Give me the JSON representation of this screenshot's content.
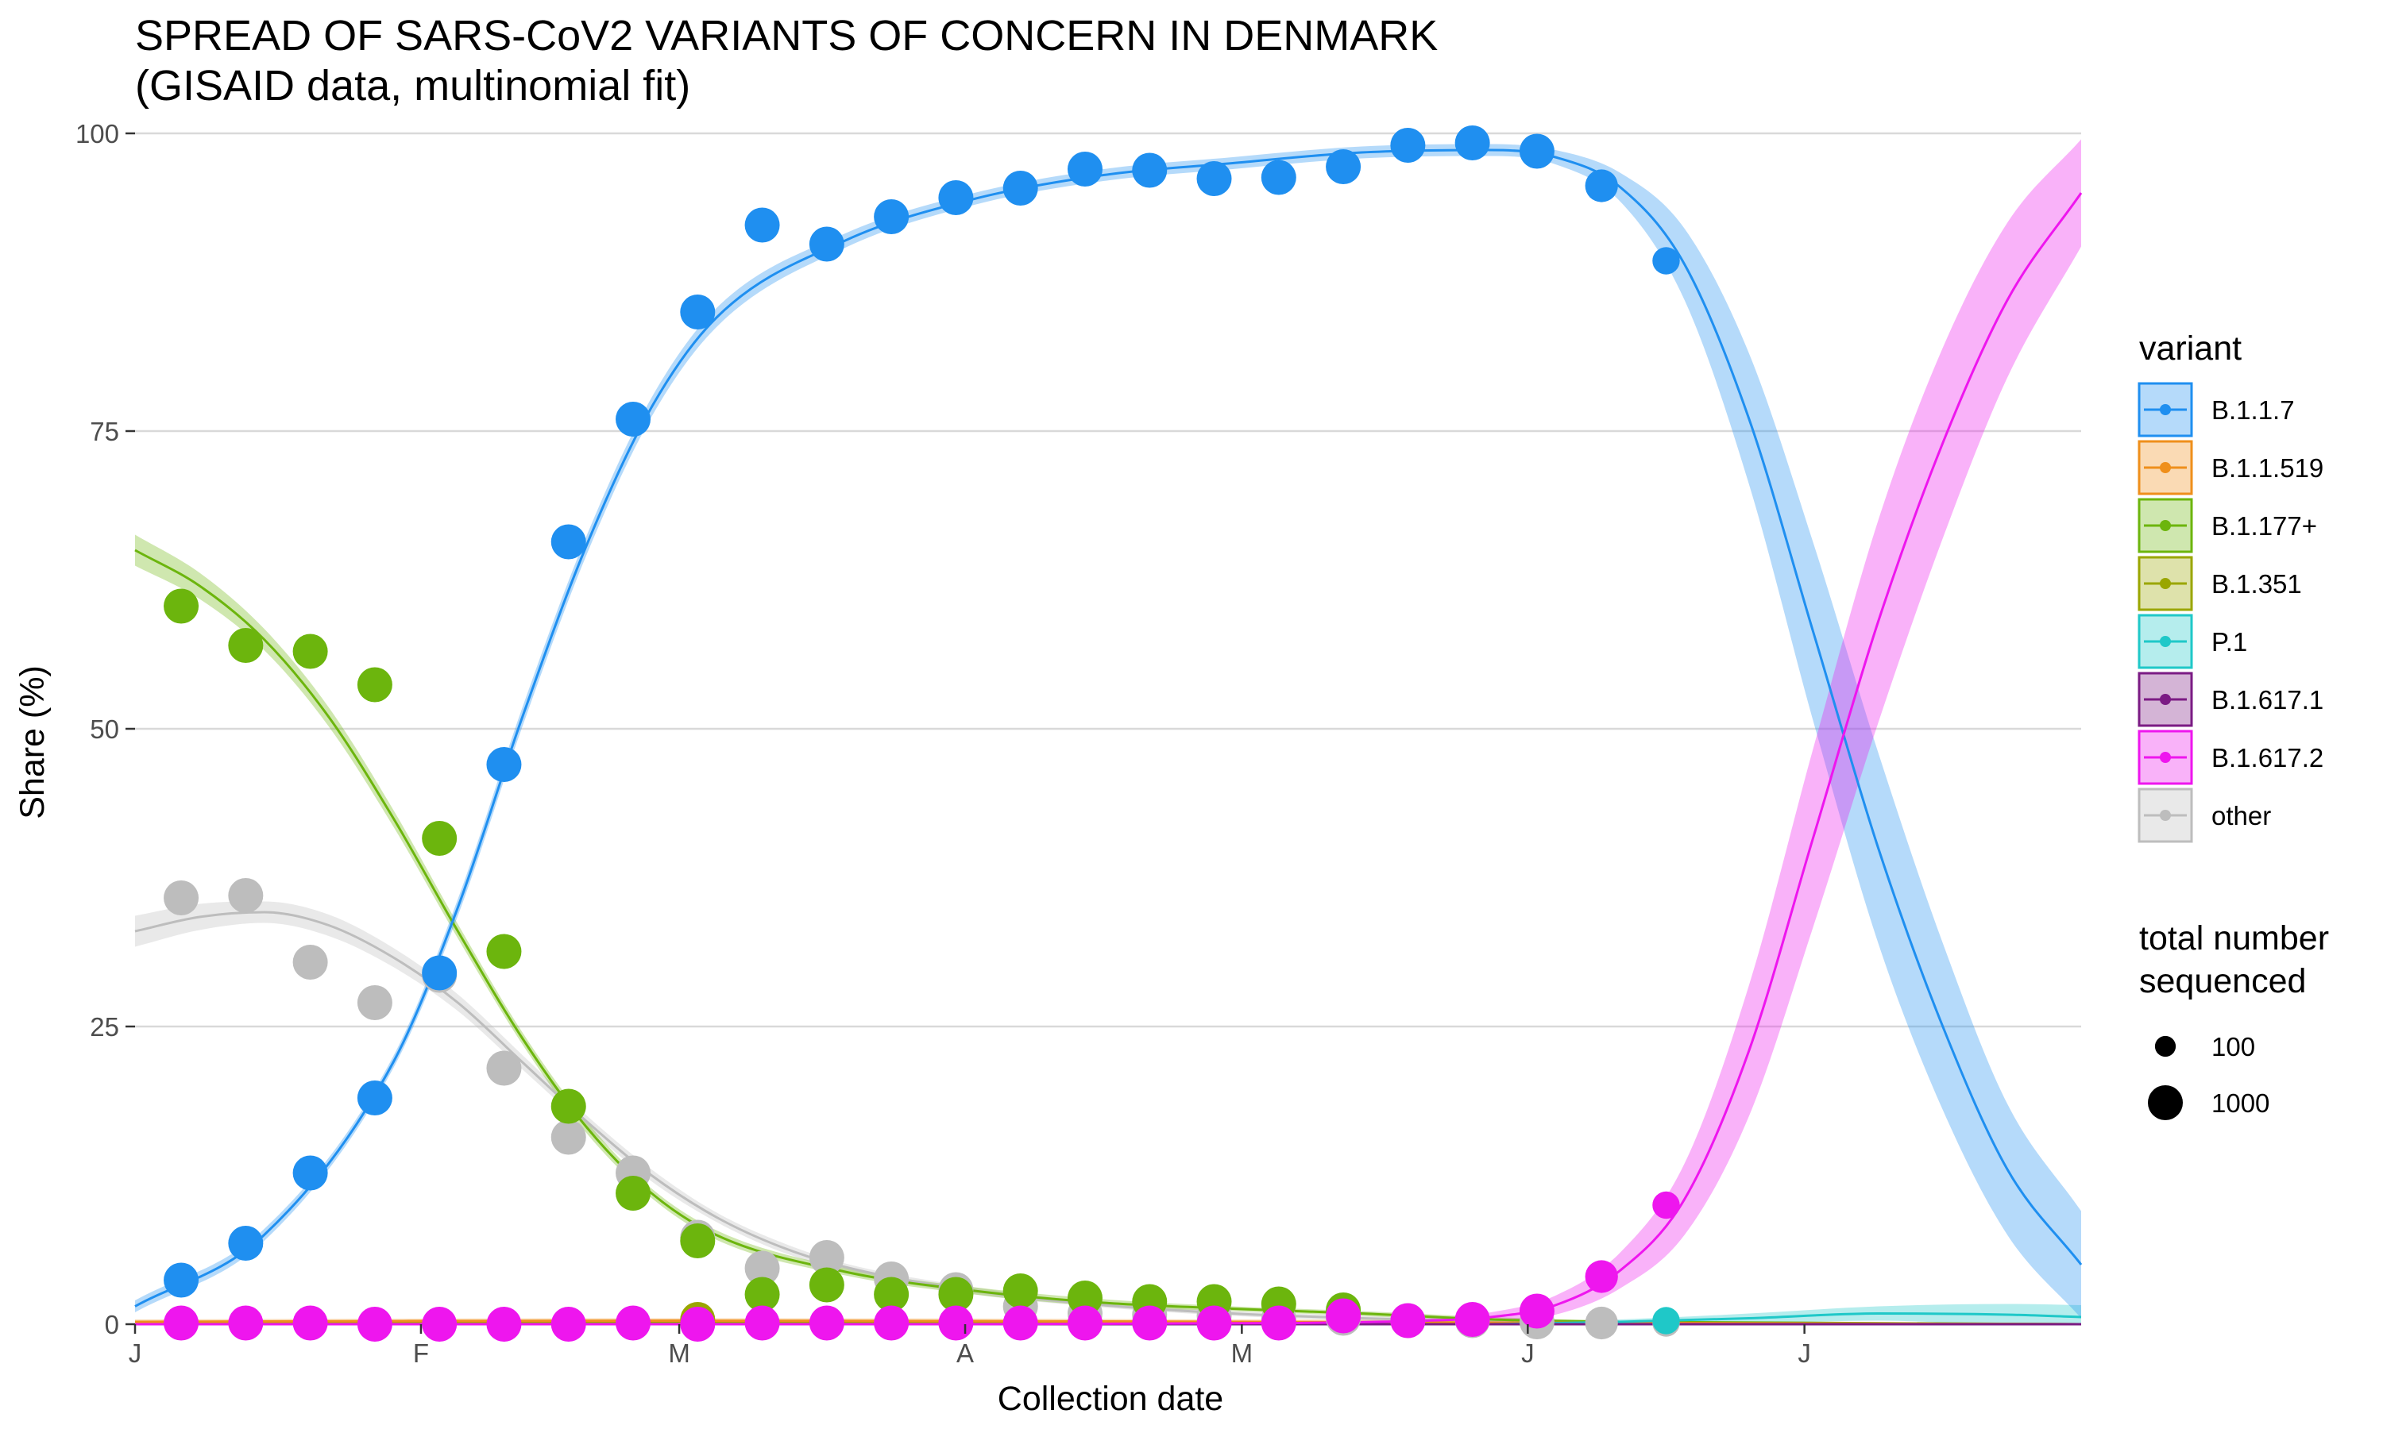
{
  "chart_data": {
    "type": "line",
    "title": "SPREAD OF SARS-CoV2 VARIANTS OF CONCERN IN DENMARK",
    "subtitle": "(GISAID data, multinomial fit)",
    "xlabel": "Collection date",
    "ylabel": "Share (%)",
    "ylim": [
      0,
      100
    ],
    "y_ticks": [
      "0",
      "25",
      "50",
      "75",
      "100"
    ],
    "x_tick_labels": [
      "J",
      "F",
      "M",
      "A",
      "M",
      "J",
      "J"
    ],
    "x_ticks": [
      "2021-01-01",
      "2021-02-01",
      "2021-03-01",
      "2021-04-01",
      "2021-05-01",
      "2021-06-01",
      "2021-07-01"
    ],
    "xlim": [
      "2021-01-01",
      "2021-07-31"
    ],
    "grid": true,
    "legend_position": "right",
    "legend_title": "variant",
    "size_legend_title": [
      "total number",
      "sequenced"
    ],
    "size_legend": [
      {
        "label": "100",
        "value": 100
      },
      {
        "label": "1000",
        "value": 1000
      }
    ],
    "series": [
      {
        "name": "B.1.1.7",
        "color": "#1f8ff0",
        "points": [
          [
            "2021-01-06",
            3.7
          ],
          [
            "2021-01-13",
            6.8
          ],
          [
            "2021-01-20",
            12.7
          ],
          [
            "2021-01-27",
            19.0
          ],
          [
            "2021-02-03",
            29.5
          ],
          [
            "2021-02-10",
            47.0
          ],
          [
            "2021-02-17",
            65.7
          ],
          [
            "2021-02-24",
            76.0
          ],
          [
            "2021-03-03",
            85.0
          ],
          [
            "2021-03-10",
            92.3
          ],
          [
            "2021-03-17",
            90.7
          ],
          [
            "2021-03-24",
            93.0
          ],
          [
            "2021-03-31",
            94.6
          ],
          [
            "2021-04-07",
            95.4
          ],
          [
            "2021-04-14",
            97.0
          ],
          [
            "2021-04-21",
            96.9
          ],
          [
            "2021-04-28",
            96.2
          ],
          [
            "2021-05-05",
            96.3
          ],
          [
            "2021-05-12",
            97.2
          ],
          [
            "2021-05-19",
            99.0
          ],
          [
            "2021-05-26",
            99.2
          ],
          [
            "2021-06-02",
            98.5
          ],
          [
            "2021-06-09",
            95.6
          ],
          [
            "2021-06-16",
            89.3
          ]
        ],
        "fit": [
          [
            "2021-01-01",
            1.5
          ],
          [
            "2021-01-15",
            7.5
          ],
          [
            "2021-01-29",
            22.0
          ],
          [
            "2021-02-05",
            35.0
          ],
          [
            "2021-02-12",
            51.0
          ],
          [
            "2021-02-19",
            65.5
          ],
          [
            "2021-02-26",
            77.0
          ],
          [
            "2021-03-05",
            84.5
          ],
          [
            "2021-03-19",
            91.0
          ],
          [
            "2021-04-02",
            94.5
          ],
          [
            "2021-04-16",
            96.5
          ],
          [
            "2021-04-30",
            97.5
          ],
          [
            "2021-05-14",
            98.4
          ],
          [
            "2021-05-28",
            98.6
          ],
          [
            "2021-06-04",
            98.0
          ],
          [
            "2021-06-11",
            95.5
          ],
          [
            "2021-06-18",
            89.0
          ],
          [
            "2021-06-25",
            76.0
          ],
          [
            "2021-07-02",
            58.0
          ],
          [
            "2021-07-09",
            40.0
          ],
          [
            "2021-07-16",
            25.0
          ],
          [
            "2021-07-23",
            13.0
          ],
          [
            "2021-07-31",
            5.0
          ]
        ],
        "band_width": [
          0.5,
          0.5,
          0.5,
          0.7,
          0.8,
          0.8,
          0.8,
          0.8,
          0.6,
          0.5,
          0.5,
          0.5,
          0.5,
          0.5,
          0.6,
          1.2,
          3.0,
          5.5,
          7.5,
          8.0,
          7.0,
          5.5,
          4.5
        ]
      },
      {
        "name": "B.1.1.519",
        "color": "#ef8f1b",
        "points": [],
        "fit": [
          [
            "2021-01-01",
            0.2
          ],
          [
            "2021-03-01",
            0.3
          ],
          [
            "2021-05-01",
            0.2
          ],
          [
            "2021-07-31",
            0.0
          ]
        ],
        "band_width": [
          0.2,
          0.2,
          0.2,
          0.1
        ]
      },
      {
        "name": "B.1.177+",
        "color": "#6cb50d",
        "points": [
          [
            "2021-01-06",
            60.3
          ],
          [
            "2021-01-13",
            57.0
          ],
          [
            "2021-01-20",
            56.5
          ],
          [
            "2021-01-27",
            53.7
          ],
          [
            "2021-02-03",
            40.8
          ],
          [
            "2021-02-10",
            31.3
          ],
          [
            "2021-02-17",
            18.3
          ],
          [
            "2021-02-24",
            11.0
          ],
          [
            "2021-03-03",
            7.0
          ],
          [
            "2021-03-10",
            2.5
          ],
          [
            "2021-03-17",
            3.3
          ],
          [
            "2021-03-24",
            2.5
          ],
          [
            "2021-03-31",
            2.5
          ],
          [
            "2021-04-07",
            2.8
          ],
          [
            "2021-04-14",
            2.2
          ],
          [
            "2021-04-21",
            1.9
          ],
          [
            "2021-04-28",
            1.9
          ],
          [
            "2021-05-05",
            1.7
          ],
          [
            "2021-05-12",
            1.2
          ]
        ],
        "fit": [
          [
            "2021-01-01",
            65.0
          ],
          [
            "2021-01-08",
            62.0
          ],
          [
            "2021-01-15",
            57.5
          ],
          [
            "2021-01-22",
            51.0
          ],
          [
            "2021-01-29",
            42.5
          ],
          [
            "2021-02-05",
            33.0
          ],
          [
            "2021-02-12",
            24.0
          ],
          [
            "2021-02-19",
            16.5
          ],
          [
            "2021-02-26",
            11.0
          ],
          [
            "2021-03-05",
            7.5
          ],
          [
            "2021-03-19",
            4.4
          ],
          [
            "2021-04-02",
            2.8
          ],
          [
            "2021-04-16",
            1.8
          ],
          [
            "2021-04-30",
            1.3
          ],
          [
            "2021-05-14",
            0.9
          ],
          [
            "2021-05-28",
            0.4
          ],
          [
            "2021-06-11",
            0.2
          ],
          [
            "2021-07-31",
            0.0
          ]
        ],
        "band_width": [
          1.3,
          1.1,
          0.9,
          0.8,
          0.7,
          0.6,
          0.5,
          0.5,
          0.4,
          0.4,
          0.3,
          0.3,
          0.3,
          0.2,
          0.2,
          0.2,
          0.1,
          0.1
        ]
      },
      {
        "name": "B.1.351",
        "color": "#9aa600",
        "points": [
          [
            "2021-03-03",
            0.4
          ]
        ],
        "fit": [
          [
            "2021-01-01",
            0.05
          ],
          [
            "2021-03-01",
            0.2
          ],
          [
            "2021-05-01",
            0.1
          ],
          [
            "2021-07-31",
            0.0
          ]
        ],
        "band_width": [
          0.1,
          0.1,
          0.1,
          0.1
        ]
      },
      {
        "name": "P.1",
        "color": "#1fc8c8",
        "points": [
          [
            "2021-06-16",
            0.3
          ]
        ],
        "fit": [
          [
            "2021-05-28",
            0.0
          ],
          [
            "2021-06-11",
            0.2
          ],
          [
            "2021-06-25",
            0.5
          ],
          [
            "2021-07-09",
            0.9
          ],
          [
            "2021-07-23",
            0.8
          ],
          [
            "2021-07-31",
            0.6
          ]
        ],
        "band_width": [
          0.1,
          0.2,
          0.4,
          0.6,
          0.9,
          1.0
        ]
      },
      {
        "name": "B.1.617.1",
        "color": "#7b1b84",
        "points": [],
        "fit": [
          [
            "2021-01-01",
            0.0
          ],
          [
            "2021-07-31",
            0.0
          ]
        ],
        "band_width": [
          0.05,
          0.05
        ]
      },
      {
        "name": "B.1.617.2",
        "color": "#ee16ee",
        "points": [
          [
            "2021-01-06",
            0.1
          ],
          [
            "2021-01-13",
            0.1
          ],
          [
            "2021-01-20",
            0.1
          ],
          [
            "2021-01-27",
            0.0
          ],
          [
            "2021-02-03",
            0.0
          ],
          [
            "2021-02-10",
            0.0
          ],
          [
            "2021-02-17",
            0.0
          ],
          [
            "2021-02-24",
            0.1
          ],
          [
            "2021-03-03",
            0.0
          ],
          [
            "2021-03-10",
            0.1
          ],
          [
            "2021-03-17",
            0.1
          ],
          [
            "2021-03-24",
            0.1
          ],
          [
            "2021-03-31",
            0.1
          ],
          [
            "2021-04-07",
            0.1
          ],
          [
            "2021-04-14",
            0.1
          ],
          [
            "2021-04-21",
            0.1
          ],
          [
            "2021-04-28",
            0.1
          ],
          [
            "2021-05-05",
            0.1
          ],
          [
            "2021-05-12",
            0.7
          ],
          [
            "2021-05-19",
            0.3
          ],
          [
            "2021-05-26",
            0.4
          ],
          [
            "2021-06-02",
            1.1
          ],
          [
            "2021-06-09",
            4.0
          ],
          [
            "2021-06-16",
            10.0
          ]
        ],
        "fit": [
          [
            "2021-01-01",
            0.0
          ],
          [
            "2021-04-02",
            0.0
          ],
          [
            "2021-05-07",
            0.1
          ],
          [
            "2021-05-21",
            0.3
          ],
          [
            "2021-05-28",
            0.6
          ],
          [
            "2021-06-04",
            1.6
          ],
          [
            "2021-06-11",
            4.5
          ],
          [
            "2021-06-18",
            10.5
          ],
          [
            "2021-06-25",
            23.0
          ],
          [
            "2021-07-02",
            41.0
          ],
          [
            "2021-07-09",
            59.0
          ],
          [
            "2021-07-16",
            74.0
          ],
          [
            "2021-07-23",
            86.0
          ],
          [
            "2021-07-31",
            95.0
          ]
        ],
        "band_width": [
          0.05,
          0.05,
          0.1,
          0.2,
          0.4,
          0.8,
          1.5,
          3.0,
          5.5,
          7.5,
          8.5,
          8.0,
          6.5,
          4.5
        ]
      },
      {
        "name": "other",
        "color": "#bdbdbd",
        "points": [
          [
            "2021-01-06",
            35.8
          ],
          [
            "2021-01-13",
            36.0
          ],
          [
            "2021-01-20",
            30.4
          ],
          [
            "2021-01-27",
            27.0
          ],
          [
            "2021-02-03",
            29.3
          ],
          [
            "2021-02-10",
            21.5
          ],
          [
            "2021-02-17",
            15.7
          ],
          [
            "2021-02-24",
            12.7
          ],
          [
            "2021-03-03",
            7.3
          ],
          [
            "2021-03-10",
            4.7
          ],
          [
            "2021-03-17",
            5.6
          ],
          [
            "2021-03-24",
            3.8
          ],
          [
            "2021-03-31",
            2.9
          ],
          [
            "2021-04-07",
            1.5
          ],
          [
            "2021-04-14",
            0.9
          ],
          [
            "2021-04-21",
            0.8
          ],
          [
            "2021-04-28",
            0.7
          ],
          [
            "2021-05-05",
            0.5
          ],
          [
            "2021-05-12",
            0.5
          ],
          [
            "2021-05-19",
            0.3
          ],
          [
            "2021-05-26",
            0.3
          ],
          [
            "2021-06-02",
            0.2
          ],
          [
            "2021-06-09",
            0.1
          ],
          [
            "2021-06-16",
            0.1
          ]
        ],
        "fit": [
          [
            "2021-01-01",
            33.0
          ],
          [
            "2021-01-08",
            34.2
          ],
          [
            "2021-01-15",
            34.6
          ],
          [
            "2021-01-22",
            33.5
          ],
          [
            "2021-01-29",
            30.8
          ],
          [
            "2021-02-05",
            27.0
          ],
          [
            "2021-02-12",
            22.0
          ],
          [
            "2021-02-19",
            17.0
          ],
          [
            "2021-02-26",
            12.5
          ],
          [
            "2021-03-05",
            9.0
          ],
          [
            "2021-03-12",
            6.5
          ],
          [
            "2021-03-19",
            4.8
          ],
          [
            "2021-04-02",
            2.8
          ],
          [
            "2021-04-16",
            1.6
          ],
          [
            "2021-04-30",
            0.9
          ],
          [
            "2021-05-14",
            0.5
          ],
          [
            "2021-05-28",
            0.2
          ],
          [
            "2021-06-11",
            0.1
          ],
          [
            "2021-07-31",
            0.0
          ]
        ],
        "band_width": [
          1.3,
          1.1,
          0.9,
          0.9,
          0.8,
          0.7,
          0.6,
          0.5,
          0.5,
          0.4,
          0.4,
          0.3,
          0.3,
          0.2,
          0.2,
          0.2,
          0.1,
          0.1,
          0.1
        ]
      }
    ],
    "point_sizes": [
      1000,
      1000,
      1000,
      1000,
      1000,
      1000,
      1000,
      1000,
      1000,
      1000,
      1000,
      1000,
      1000,
      1000,
      1000,
      1000,
      1000,
      1000,
      1000,
      1000,
      1000,
      1000,
      800,
      400
    ],
    "draw_order": [
      "other",
      "B.1.177+",
      "B.1.351",
      "B.1.1.519",
      "P.1",
      "B.1.617.1",
      "B.1.1.7",
      "B.1.617.2"
    ]
  }
}
